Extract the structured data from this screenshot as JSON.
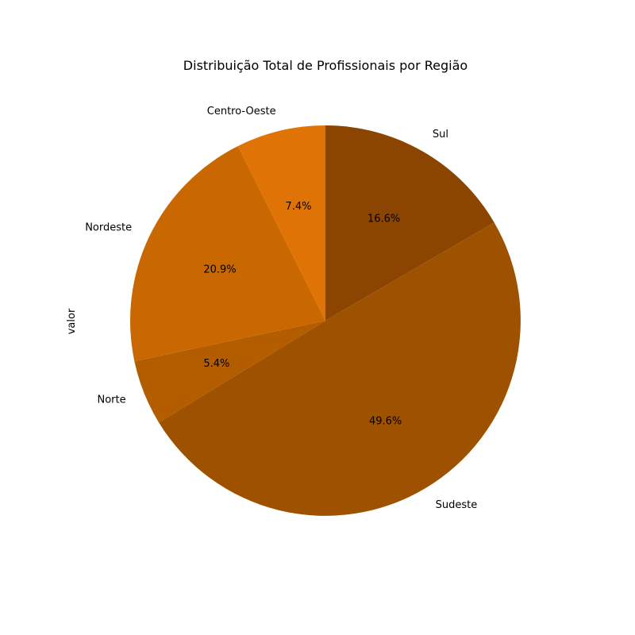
{
  "chart_data": {
    "type": "pie",
    "title": "Distribuição Total de Profissionais por Região",
    "ylabel": "valor",
    "legend": "none",
    "start_angle_deg": 90,
    "direction": "clockwise",
    "slices": [
      {
        "label": "Sul",
        "percent": 16.6,
        "pct_text": "16.6%",
        "color": "#8b4500"
      },
      {
        "label": "Sudeste",
        "percent": 49.6,
        "pct_text": "49.6%",
        "color": "#9e5200"
      },
      {
        "label": "Norte",
        "percent": 5.4,
        "pct_text": "5.4%",
        "color": "#b35c00"
      },
      {
        "label": "Nordeste",
        "percent": 20.9,
        "pct_text": "20.9%",
        "color": "#c96700"
      },
      {
        "label": "Centro-Oeste",
        "percent": 7.4,
        "pct_text": "7.4%",
        "color": "#e07305"
      }
    ]
  }
}
